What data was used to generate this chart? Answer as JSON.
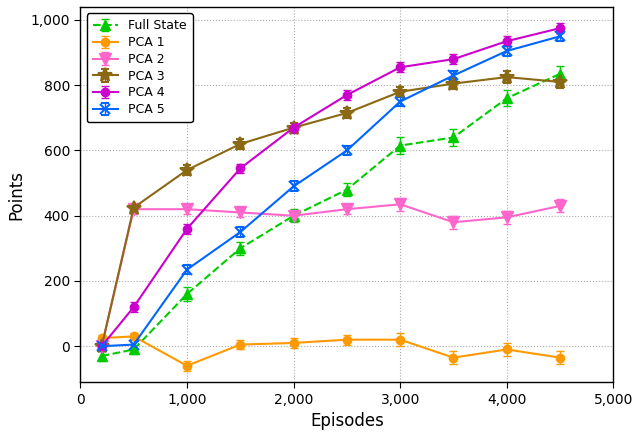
{
  "title": "",
  "xlabel": "Episodes",
  "ylabel": "Points",
  "xlim": [
    0,
    5000
  ],
  "ylim": [
    -110,
    1040
  ],
  "xticks": [
    0,
    1000,
    2000,
    3000,
    4000,
    5000
  ],
  "yticks": [
    0,
    200,
    400,
    600,
    800,
    1000
  ],
  "series": {
    "Full State": {
      "color": "#00cc00",
      "marker": "^",
      "linestyle": "--",
      "x": [
        200,
        500,
        1000,
        1500,
        2000,
        2500,
        3000,
        3500,
        4000,
        4500
      ],
      "y": [
        -30,
        -10,
        160,
        300,
        400,
        480,
        615,
        640,
        760,
        835
      ],
      "yerr": [
        15,
        15,
        20,
        20,
        20,
        20,
        25,
        25,
        25,
        25
      ]
    },
    "PCA 1": {
      "color": "#ff9900",
      "marker": "o",
      "linestyle": "-",
      "x": [
        200,
        500,
        1000,
        1500,
        2000,
        2500,
        3000,
        3500,
        4000,
        4500
      ],
      "y": [
        25,
        30,
        -60,
        5,
        10,
        20,
        20,
        -35,
        -10,
        -35
      ],
      "yerr": [
        10,
        10,
        15,
        15,
        15,
        15,
        20,
        20,
        20,
        20
      ]
    },
    "PCA 2": {
      "color": "#ff66cc",
      "marker": "v",
      "linestyle": "-",
      "x": [
        200,
        500,
        1000,
        1500,
        2000,
        2500,
        3000,
        3500,
        4000,
        4500
      ],
      "y": [
        0,
        420,
        420,
        410,
        400,
        420,
        435,
        380,
        395,
        430
      ],
      "yerr": [
        15,
        15,
        15,
        15,
        15,
        15,
        20,
        20,
        20,
        20
      ]
    },
    "PCA 3": {
      "color": "#8B6914",
      "marker": "*",
      "linestyle": "-",
      "x": [
        200,
        500,
        1000,
        1500,
        2000,
        2500,
        3000,
        3500,
        4000,
        4500
      ],
      "y": [
        0,
        425,
        540,
        620,
        670,
        715,
        780,
        805,
        825,
        810
      ],
      "yerr": [
        10,
        12,
        15,
        15,
        15,
        15,
        15,
        18,
        18,
        18
      ]
    },
    "PCA 4": {
      "color": "#cc00cc",
      "marker": "o",
      "linestyle": "-",
      "x": [
        200,
        500,
        1000,
        1500,
        2000,
        2500,
        3000,
        3500,
        4000,
        4500
      ],
      "y": [
        0,
        120,
        360,
        545,
        670,
        770,
        855,
        880,
        935,
        975
      ],
      "yerr": [
        15,
        15,
        15,
        15,
        15,
        15,
        15,
        15,
        15,
        15
      ]
    },
    "PCA 5": {
      "color": "#0066ff",
      "marker": "x",
      "linestyle": "-",
      "x": [
        200,
        500,
        1000,
        1500,
        2000,
        2500,
        3000,
        3500,
        4000,
        4500
      ],
      "y": [
        0,
        5,
        235,
        350,
        490,
        600,
        750,
        830,
        905,
        950
      ],
      "yerr": [
        15,
        15,
        15,
        15,
        15,
        15,
        15,
        15,
        15,
        15
      ]
    }
  },
  "legend_order": [
    "Full State",
    "PCA 1",
    "PCA 2",
    "PCA 3",
    "PCA 4",
    "PCA 5"
  ],
  "background_color": "#ffffff",
  "grid_color": "#aaaaaa"
}
